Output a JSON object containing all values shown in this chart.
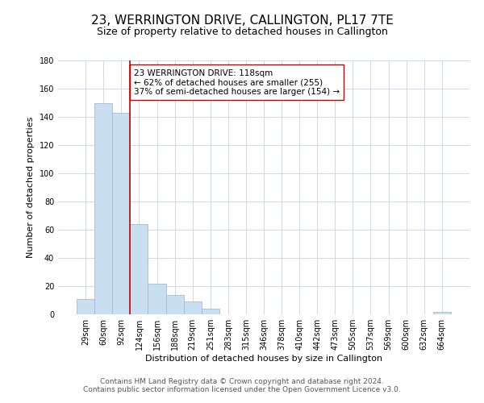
{
  "title": "23, WERRINGTON DRIVE, CALLINGTON, PL17 7TE",
  "subtitle": "Size of property relative to detached houses in Callington",
  "xlabel": "Distribution of detached houses by size in Callington",
  "ylabel": "Number of detached properties",
  "footer_line1": "Contains HM Land Registry data © Crown copyright and database right 2024.",
  "footer_line2": "Contains public sector information licensed under the Open Government Licence v3.0.",
  "bin_labels": [
    "29sqm",
    "60sqm",
    "92sqm",
    "124sqm",
    "156sqm",
    "188sqm",
    "219sqm",
    "251sqm",
    "283sqm",
    "315sqm",
    "346sqm",
    "378sqm",
    "410sqm",
    "442sqm",
    "473sqm",
    "505sqm",
    "537sqm",
    "569sqm",
    "600sqm",
    "632sqm",
    "664sqm"
  ],
  "bar_heights": [
    11,
    150,
    143,
    64,
    22,
    14,
    9,
    4,
    0,
    0,
    0,
    0,
    0,
    0,
    0,
    0,
    0,
    0,
    0,
    0,
    2
  ],
  "bar_color": "#c9dff0",
  "bar_edge_color": "#a0bcd8",
  "vline_color": "#cc0000",
  "annotation_text": "23 WERRINGTON DRIVE: 118sqm\n← 62% of detached houses are smaller (255)\n37% of semi-detached houses are larger (154) →",
  "annotation_box_color": "#ffffff",
  "annotation_box_edge": "#cc0000",
  "ylim": [
    0,
    180
  ],
  "yticks": [
    0,
    20,
    40,
    60,
    80,
    100,
    120,
    140,
    160,
    180
  ],
  "background_color": "#ffffff",
  "grid_color": "#d0d8e8",
  "title_fontsize": 11,
  "subtitle_fontsize": 9,
  "axis_label_fontsize": 8,
  "tick_fontsize": 7,
  "annotation_fontsize": 7.5,
  "footer_fontsize": 6.5
}
